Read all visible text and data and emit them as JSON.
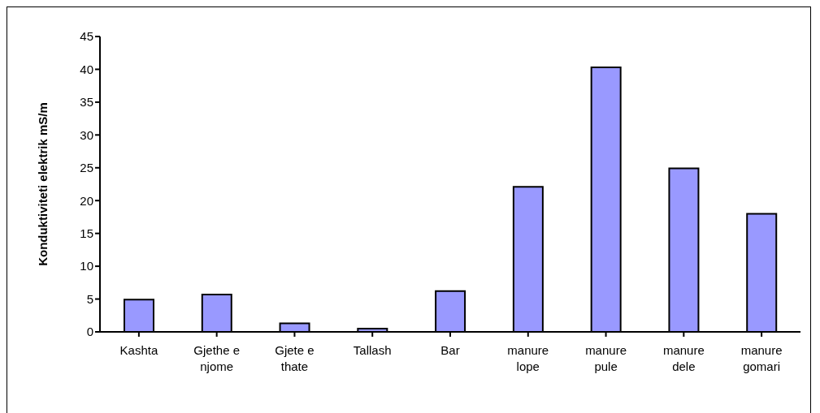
{
  "chart_data": {
    "type": "bar",
    "ylabel": "Konduktiviteti elektrik mS/m",
    "categories": [
      "Kashta",
      "Gjethe e njome",
      "Gjete e thate",
      "Tallash",
      "Bar",
      "manure lope",
      "manure pule",
      "manure dele",
      "manure gomari"
    ],
    "values": [
      4.9,
      5.7,
      1.3,
      0.5,
      6.2,
      22.1,
      40.3,
      24.9,
      18
    ],
    "color": "#9999ff",
    "ylim": [
      0,
      45
    ],
    "yticks": [
      0,
      5,
      10,
      15,
      20,
      25,
      30,
      35,
      40,
      45
    ],
    "grid": false,
    "legend": false
  }
}
